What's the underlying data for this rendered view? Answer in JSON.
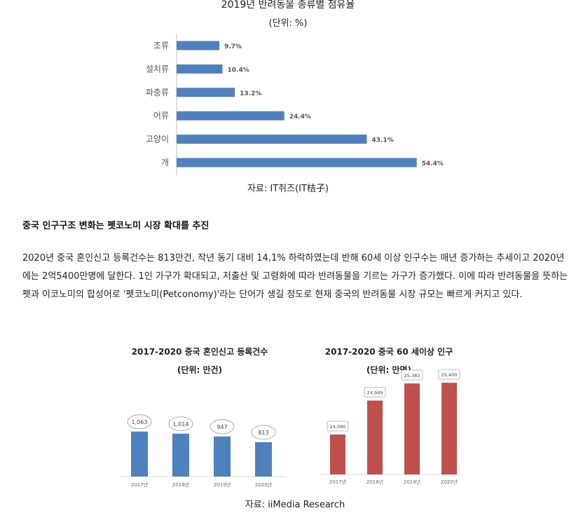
{
  "chart1": {
    "title": "2019년 반려동물 종류별 점유율",
    "unit": "(단위: %)",
    "source": "자료: IT쥐즈(IT桔子)"
  },
  "article": {
    "heading": "중국 인구구조 변화는 펫코노미 시장 확대를 추진",
    "paragraph": "2020년 중국 혼인신고 등록건수는 813만건, 작년 동기 대비 14,1% 하락하였는데 반해 60세 이상 인구수는 매년 증가하는 추세이고 2020년에는 2억5400만명에 달한다. 1인 가구가 확대되고, 저출산 및 고령화에 따라 반려동물을 기르는 가구가 증가했다. 이에 따라 반려동물을 뜻하는 펫과 이코노미의 합성어로 '펫코노미(Petconomy)'라는 단어가 생길 정도로 현재 중국의 반려동물 시장 규모는 빠르게 커지고 있다."
  },
  "chart2": {
    "title": "2017-2020 중국 혼인신고 등록건수",
    "unit": "(단위: 만건)"
  },
  "chart3": {
    "title": "2017-2020 중국 60 세이상 인구",
    "unit": "(단위: 만명)"
  },
  "source2": "자료: iiMedia Research",
  "colors": {
    "blue": "#4f81bd",
    "red": "#c0504d"
  },
  "chart_data": [
    {
      "type": "bar",
      "orientation": "horizontal",
      "title": "2019년 반려동물 종류별 점유율",
      "subtitle": "(단위: %)",
      "categories": [
        "조류",
        "설치류",
        "파충류",
        "어류",
        "고양이",
        "개"
      ],
      "values": [
        9.7,
        10.4,
        13.2,
        24.4,
        43.1,
        54.4
      ],
      "labels": [
        "9.7%",
        "10.4%",
        "13.2%",
        "24.4%",
        "43.1%",
        "54.4%"
      ],
      "color": "#4f81bd"
    },
    {
      "type": "bar",
      "title": "2017-2020 중국 혼인신고 등록건수",
      "subtitle": "(단위: 만건)",
      "categories": [
        "2017년",
        "2018년",
        "2019년",
        "2020년"
      ],
      "values": [
        1063,
        1014,
        947,
        813
      ],
      "labels": [
        "1,063",
        "1,014",
        "947",
        "813"
      ],
      "color": "#4f81bd"
    },
    {
      "type": "bar",
      "title": "2017-2020 중국 60 세이상 인구",
      "subtitle": "(단위: 만명)",
      "categories": [
        "2017년",
        "2018년",
        "2019년",
        "2020년"
      ],
      "values": [
        24090,
        24949,
        25383,
        25400
      ],
      "labels": [
        "24,090",
        "24,949",
        "25,383",
        "25,400"
      ],
      "color": "#c0504d"
    }
  ]
}
